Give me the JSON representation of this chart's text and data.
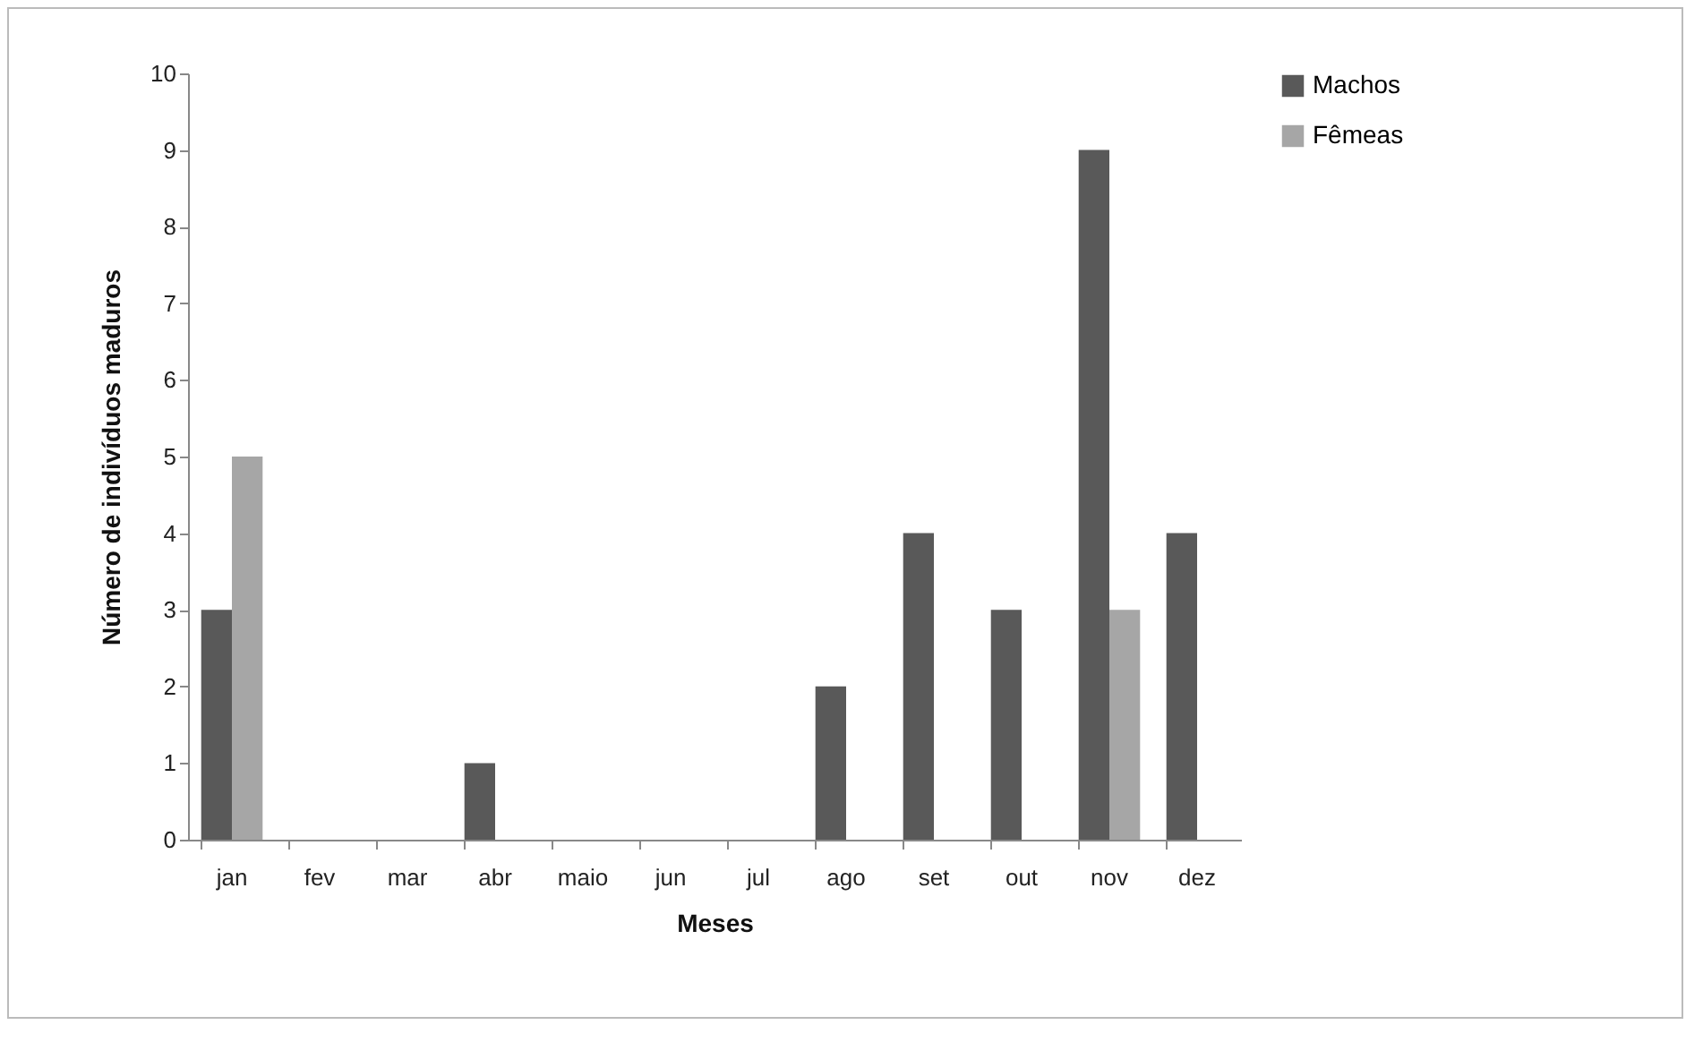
{
  "chart_data": {
    "type": "bar",
    "xlabel": "Meses",
    "ylabel": "Número de indivíduos  maduros",
    "categories": [
      "jan",
      "fev",
      "mar",
      "abr",
      "maio",
      "jun",
      "jul",
      "ago",
      "set",
      "out",
      "nov",
      "dez"
    ],
    "series": [
      {
        "name": "Machos",
        "color": "#595959",
        "values": [
          3,
          0,
          0,
          1,
          0,
          0,
          0,
          2,
          4,
          3,
          9,
          4
        ]
      },
      {
        "name": "Fêmeas",
        "color": "#a6a6a6",
        "values": [
          5,
          0,
          0,
          0,
          0,
          0,
          0,
          0,
          0,
          0,
          3,
          0
        ]
      }
    ],
    "ylim": [
      0,
      10
    ],
    "yticks": [
      0,
      1,
      2,
      3,
      4,
      5,
      6,
      7,
      8,
      9,
      10
    ],
    "grid": false,
    "legend": "right"
  }
}
